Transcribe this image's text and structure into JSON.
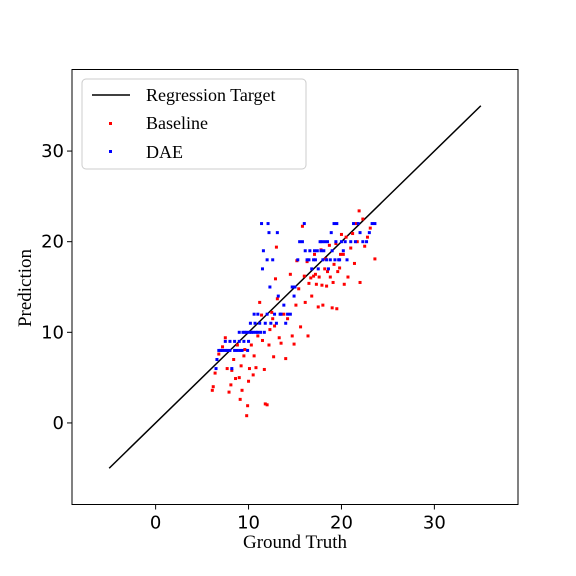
{
  "chart_data": {
    "type": "scatter",
    "xlabel": "Ground Truth",
    "ylabel": "Prediction",
    "xlim": [
      -9,
      39
    ],
    "ylim": [
      -9,
      39
    ],
    "xticks": [
      0,
      10,
      20,
      30
    ],
    "yticks": [
      0,
      10,
      20,
      30
    ],
    "grid": false,
    "legend_placement": "top-left",
    "line": {
      "name": "Regression Target",
      "color": "#000000",
      "x": [
        -5,
        35
      ],
      "y": [
        -5,
        35
      ]
    },
    "series": [
      {
        "name": "Baseline",
        "color": "#ff0000",
        "points": [
          [
            6.1,
            3.6
          ],
          [
            6.2,
            4.0
          ],
          [
            6.4,
            5.5
          ],
          [
            6.8,
            7.6
          ],
          [
            7.2,
            8.4
          ],
          [
            7.5,
            9.4
          ],
          [
            7.7,
            6.0
          ],
          [
            7.9,
            3.4
          ],
          [
            8.1,
            4.2
          ],
          [
            8.2,
            5.8
          ],
          [
            8.4,
            7.0
          ],
          [
            8.6,
            4.9
          ],
          [
            8.8,
            8.6
          ],
          [
            9.0,
            5.0
          ],
          [
            9.1,
            2.6
          ],
          [
            9.2,
            6.3
          ],
          [
            9.3,
            3.6
          ],
          [
            9.5,
            7.4
          ],
          [
            9.6,
            8.1
          ],
          [
            9.8,
            0.8
          ],
          [
            9.9,
            1.9
          ],
          [
            10.0,
            4.6
          ],
          [
            10.1,
            6.0
          ],
          [
            10.3,
            8.6
          ],
          [
            10.5,
            5.3
          ],
          [
            10.6,
            7.4
          ],
          [
            10.8,
            6.1
          ],
          [
            11.0,
            9.6
          ],
          [
            11.2,
            13.3
          ],
          [
            11.4,
            11.9
          ],
          [
            11.5,
            9.1
          ],
          [
            11.7,
            5.9
          ],
          [
            11.8,
            2.1
          ],
          [
            12.0,
            2.0
          ],
          [
            12.2,
            8.6
          ],
          [
            12.3,
            10.3
          ],
          [
            12.5,
            12.2
          ],
          [
            12.6,
            11.5
          ],
          [
            12.7,
            7.3
          ],
          [
            12.8,
            10.7
          ],
          [
            12.9,
            15.9
          ],
          [
            13.0,
            19.4
          ],
          [
            13.1,
            13.7
          ],
          [
            13.3,
            9.4
          ],
          [
            13.5,
            8.8
          ],
          [
            13.8,
            12.0
          ],
          [
            14.0,
            7.1
          ],
          [
            14.2,
            11.5
          ],
          [
            14.5,
            16.4
          ],
          [
            14.7,
            9.6
          ],
          [
            14.9,
            8.7
          ],
          [
            15.1,
            13.0
          ],
          [
            15.2,
            17.9
          ],
          [
            15.4,
            14.8
          ],
          [
            15.6,
            10.6
          ],
          [
            15.8,
            21.7
          ],
          [
            16.0,
            16.2
          ],
          [
            16.1,
            13.3
          ],
          [
            16.3,
            17.8
          ],
          [
            16.4,
            9.6
          ],
          [
            16.5,
            15.4
          ],
          [
            16.7,
            16.0
          ],
          [
            16.8,
            14.0
          ],
          [
            17.0,
            16.2
          ],
          [
            17.1,
            18.6
          ],
          [
            17.2,
            16.4
          ],
          [
            17.3,
            15.3
          ],
          [
            17.5,
            12.8
          ],
          [
            17.6,
            16.1
          ],
          [
            17.8,
            19.1
          ],
          [
            17.9,
            15.2
          ],
          [
            18.0,
            13.0
          ],
          [
            18.2,
            17.0
          ],
          [
            18.3,
            18.1
          ],
          [
            18.4,
            15.1
          ],
          [
            18.5,
            16.7
          ],
          [
            18.7,
            19.6
          ],
          [
            18.8,
            16.1
          ],
          [
            19.0,
            12.7
          ],
          [
            19.1,
            15.5
          ],
          [
            19.2,
            17.5
          ],
          [
            19.4,
            19.8
          ],
          [
            19.5,
            12.6
          ],
          [
            19.6,
            16.7
          ],
          [
            19.8,
            17.1
          ],
          [
            19.9,
            18.6
          ],
          [
            20.0,
            20.8
          ],
          [
            20.2,
            18.6
          ],
          [
            20.3,
            15.3
          ],
          [
            20.5,
            20.5
          ],
          [
            20.7,
            16.1
          ],
          [
            21.0,
            19.3
          ],
          [
            21.2,
            20.9
          ],
          [
            21.4,
            17.6
          ],
          [
            21.6,
            22.0
          ],
          [
            21.7,
            20.0
          ],
          [
            21.9,
            23.4
          ],
          [
            22.0,
            15.5
          ],
          [
            22.3,
            22.5
          ],
          [
            22.5,
            19.5
          ],
          [
            22.8,
            20.5
          ],
          [
            23.1,
            21.5
          ],
          [
            23.6,
            18.1
          ]
        ]
      },
      {
        "name": "DAE",
        "color": "#0000ff",
        "points": [
          [
            6.5,
            6.0
          ],
          [
            6.6,
            7.0
          ],
          [
            6.8,
            8.0
          ],
          [
            7.0,
            8.0
          ],
          [
            7.2,
            8.0
          ],
          [
            7.5,
            8.0
          ],
          [
            7.5,
            9.0
          ],
          [
            7.7,
            8.0
          ],
          [
            8.0,
            8.0
          ],
          [
            8.0,
            9.0
          ],
          [
            8.2,
            6.0
          ],
          [
            8.5,
            8.0
          ],
          [
            8.5,
            9.0
          ],
          [
            8.8,
            8.0
          ],
          [
            9.0,
            10.0
          ],
          [
            9.0,
            9.0
          ],
          [
            9.1,
            8.0
          ],
          [
            9.3,
            8.0
          ],
          [
            9.4,
            10.0
          ],
          [
            9.5,
            9.0
          ],
          [
            9.6,
            10.0
          ],
          [
            9.8,
            10.0
          ],
          [
            9.9,
            8.0
          ],
          [
            10.0,
            9.0
          ],
          [
            10.1,
            10.0
          ],
          [
            10.2,
            11.0
          ],
          [
            10.3,
            10.0
          ],
          [
            10.5,
            10.0
          ],
          [
            10.6,
            12.0
          ],
          [
            10.7,
            11.0
          ],
          [
            10.8,
            10.0
          ],
          [
            11.0,
            10.0
          ],
          [
            11.0,
            12.0
          ],
          [
            11.2,
            11.0
          ],
          [
            11.3,
            10.0
          ],
          [
            11.4,
            22.0
          ],
          [
            11.5,
            17.0
          ],
          [
            11.6,
            19.0
          ],
          [
            11.7,
            10.0
          ],
          [
            11.8,
            11.0
          ],
          [
            12.0,
            12.0
          ],
          [
            12.0,
            18.0
          ],
          [
            12.1,
            22.0
          ],
          [
            12.2,
            21.0
          ],
          [
            12.3,
            15.0
          ],
          [
            12.4,
            11.0
          ],
          [
            12.6,
            18.0
          ],
          [
            12.8,
            12.0
          ],
          [
            13.0,
            11.0
          ],
          [
            13.1,
            21.0
          ],
          [
            13.2,
            14.0
          ],
          [
            13.4,
            12.0
          ],
          [
            13.5,
            12.0
          ],
          [
            13.8,
            13.0
          ],
          [
            14.0,
            11.0
          ],
          [
            14.2,
            12.0
          ],
          [
            14.5,
            12.0
          ],
          [
            14.7,
            15.0
          ],
          [
            14.9,
            14.0
          ],
          [
            15.0,
            15.0
          ],
          [
            15.3,
            18.0
          ],
          [
            15.5,
            20.0
          ],
          [
            15.8,
            20.0
          ],
          [
            16.0,
            22.0
          ],
          [
            16.1,
            19.0
          ],
          [
            16.3,
            18.0
          ],
          [
            16.5,
            18.0
          ],
          [
            16.6,
            19.0
          ],
          [
            16.8,
            17.0
          ],
          [
            17.0,
            18.0
          ],
          [
            17.1,
            19.0
          ],
          [
            17.2,
            18.0
          ],
          [
            17.4,
            19.0
          ],
          [
            17.5,
            17.0
          ],
          [
            17.7,
            20.0
          ],
          [
            17.8,
            19.0
          ],
          [
            17.9,
            20.0
          ],
          [
            18.0,
            18.0
          ],
          [
            18.1,
            19.0
          ],
          [
            18.2,
            20.0
          ],
          [
            18.4,
            18.0
          ],
          [
            18.5,
            20.0
          ],
          [
            18.6,
            17.0
          ],
          [
            18.8,
            18.0
          ],
          [
            18.9,
            21.0
          ],
          [
            19.0,
            19.0
          ],
          [
            19.2,
            22.0
          ],
          [
            19.3,
            18.0
          ],
          [
            19.4,
            20.0
          ],
          [
            19.5,
            22.0
          ],
          [
            19.7,
            18.0
          ],
          [
            19.8,
            18.0
          ],
          [
            20.0,
            20.0
          ],
          [
            20.2,
            19.0
          ],
          [
            20.4,
            20.0
          ],
          [
            20.6,
            18.0
          ],
          [
            21.0,
            20.0
          ],
          [
            21.3,
            22.0
          ],
          [
            21.5,
            20.0
          ],
          [
            21.8,
            22.0
          ],
          [
            22.0,
            21.0
          ],
          [
            22.3,
            20.0
          ],
          [
            22.7,
            20.0
          ],
          [
            23.0,
            21.0
          ],
          [
            23.3,
            22.0
          ],
          [
            23.6,
            22.0
          ]
        ]
      }
    ]
  }
}
